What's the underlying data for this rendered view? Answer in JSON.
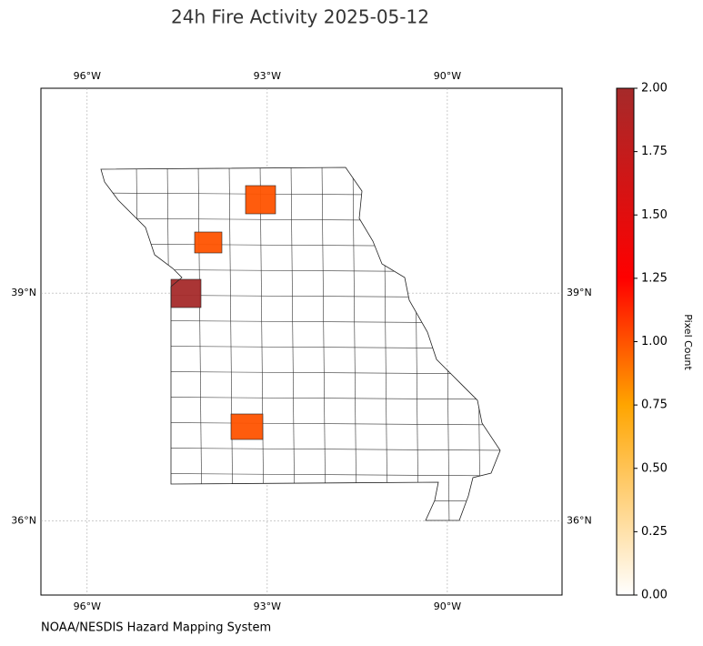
{
  "map": {
    "title": "24h Fire Activity 2025-05-12",
    "lon_ticks": [
      {
        "value": -96,
        "label": "96°W"
      },
      {
        "value": -93,
        "label": "93°W"
      },
      {
        "value": -90,
        "label": "90°W"
      }
    ],
    "lat_ticks": [
      {
        "value": 39,
        "label": "39°N"
      },
      {
        "value": 36,
        "label": "36°N"
      }
    ],
    "lon_lim": [
      -96.77,
      -88.09
    ],
    "lat_lim": [
      35.02,
      41.7
    ],
    "fire_pixel_counts": [
      1,
      1,
      1,
      2
    ],
    "colorbar": {
      "label": "Pixel Count",
      "lim": [
        0,
        2
      ],
      "ticks": [
        {
          "value": 0,
          "label": "0.00"
        },
        {
          "value": 0.25,
          "label": "0.25"
        },
        {
          "value": 0.5,
          "label": "0.50"
        },
        {
          "value": 0.75,
          "label": "0.75"
        },
        {
          "value": 1,
          "label": "1.00"
        },
        {
          "value": 1.25,
          "label": "1.25"
        },
        {
          "value": 1.5,
          "label": "1.50"
        },
        {
          "value": 1.75,
          "label": "1.75"
        },
        {
          "value": 2,
          "label": "2.00"
        }
      ]
    },
    "source": "NOAA/NESDIS Hazard Mapping System"
  }
}
